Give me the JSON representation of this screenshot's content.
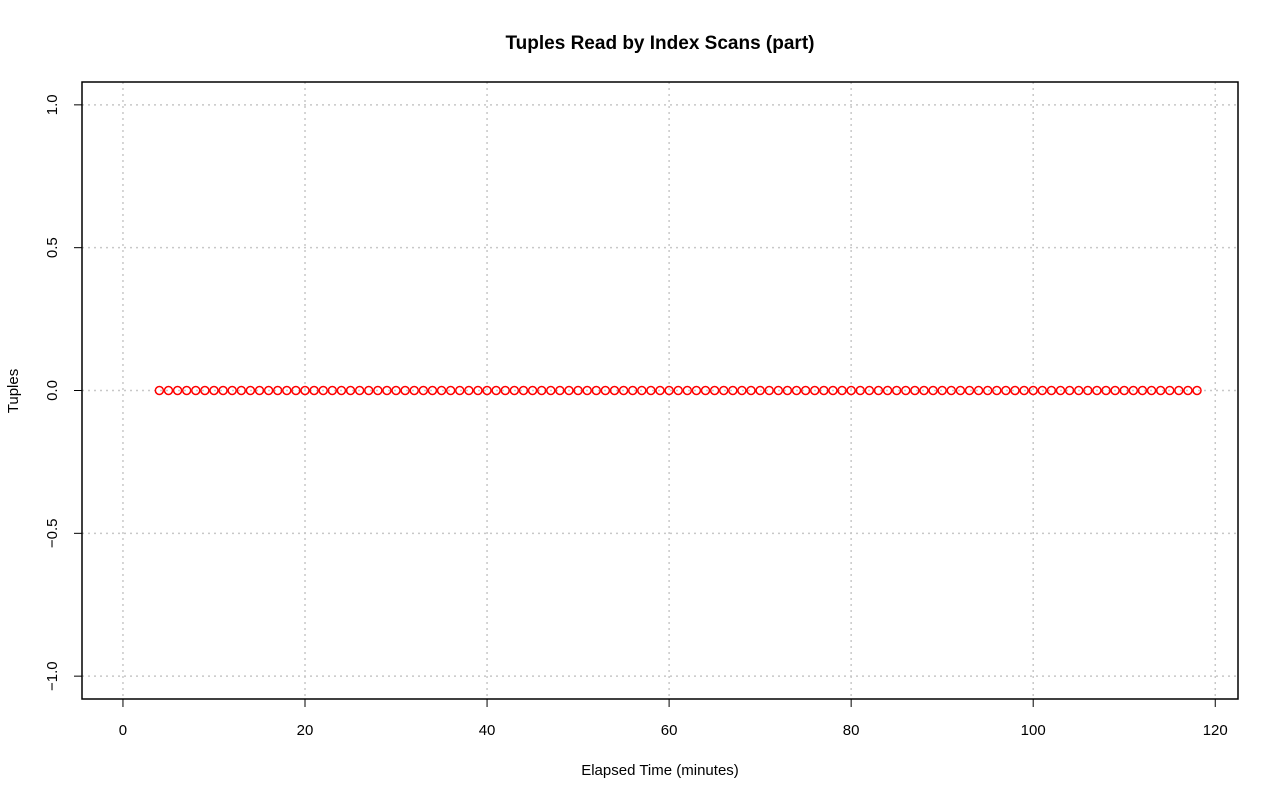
{
  "chart_data": {
    "type": "scatter",
    "title": "Tuples Read by Index Scans (part)",
    "xlabel": "Elapsed Time (minutes)",
    "ylabel": "Tuples",
    "xlim": [
      -4.5,
      122.5
    ],
    "ylim": [
      -1.08,
      1.08
    ],
    "x_ticks": [
      0,
      20,
      40,
      60,
      80,
      100,
      120
    ],
    "x_tick_labels": [
      "0",
      "20",
      "40",
      "60",
      "80",
      "100",
      "120"
    ],
    "y_ticks": [
      -1.0,
      -0.5,
      0.0,
      0.5,
      1.0
    ],
    "y_tick_labels": [
      "−1.0",
      "−0.5",
      "0.0",
      "0.5",
      "1.0"
    ],
    "grid": true,
    "series": [
      {
        "marker": "open-circle",
        "color": "#ff0000",
        "x": [
          4,
          5,
          6,
          7,
          8,
          9,
          10,
          11,
          12,
          13,
          14,
          15,
          16,
          17,
          18,
          19,
          20,
          21,
          22,
          23,
          24,
          25,
          26,
          27,
          28,
          29,
          30,
          31,
          32,
          33,
          34,
          35,
          36,
          37,
          38,
          39,
          40,
          41,
          42,
          43,
          44,
          45,
          46,
          47,
          48,
          49,
          50,
          51,
          52,
          53,
          54,
          55,
          56,
          57,
          58,
          59,
          60,
          61,
          62,
          63,
          64,
          65,
          66,
          67,
          68,
          69,
          70,
          71,
          72,
          73,
          74,
          75,
          76,
          77,
          78,
          79,
          80,
          81,
          82,
          83,
          84,
          85,
          86,
          87,
          88,
          89,
          90,
          91,
          92,
          93,
          94,
          95,
          96,
          97,
          98,
          99,
          100,
          101,
          102,
          103,
          104,
          105,
          106,
          107,
          108,
          109,
          110,
          111,
          112,
          113,
          114,
          115,
          116,
          117,
          118
        ],
        "y": [
          0,
          0,
          0,
          0,
          0,
          0,
          0,
          0,
          0,
          0,
          0,
          0,
          0,
          0,
          0,
          0,
          0,
          0,
          0,
          0,
          0,
          0,
          0,
          0,
          0,
          0,
          0,
          0,
          0,
          0,
          0,
          0,
          0,
          0,
          0,
          0,
          0,
          0,
          0,
          0,
          0,
          0,
          0,
          0,
          0,
          0,
          0,
          0,
          0,
          0,
          0,
          0,
          0,
          0,
          0,
          0,
          0,
          0,
          0,
          0,
          0,
          0,
          0,
          0,
          0,
          0,
          0,
          0,
          0,
          0,
          0,
          0,
          0,
          0,
          0,
          0,
          0,
          0,
          0,
          0,
          0,
          0,
          0,
          0,
          0,
          0,
          0,
          0,
          0,
          0,
          0,
          0,
          0,
          0,
          0,
          0,
          0,
          0,
          0,
          0,
          0,
          0,
          0,
          0,
          0,
          0,
          0,
          0,
          0,
          0,
          0,
          0,
          0,
          0,
          0
        ]
      }
    ]
  },
  "colors": {
    "grid": "#c8c8c8",
    "frame": "#000000",
    "points": "#ff0000"
  }
}
